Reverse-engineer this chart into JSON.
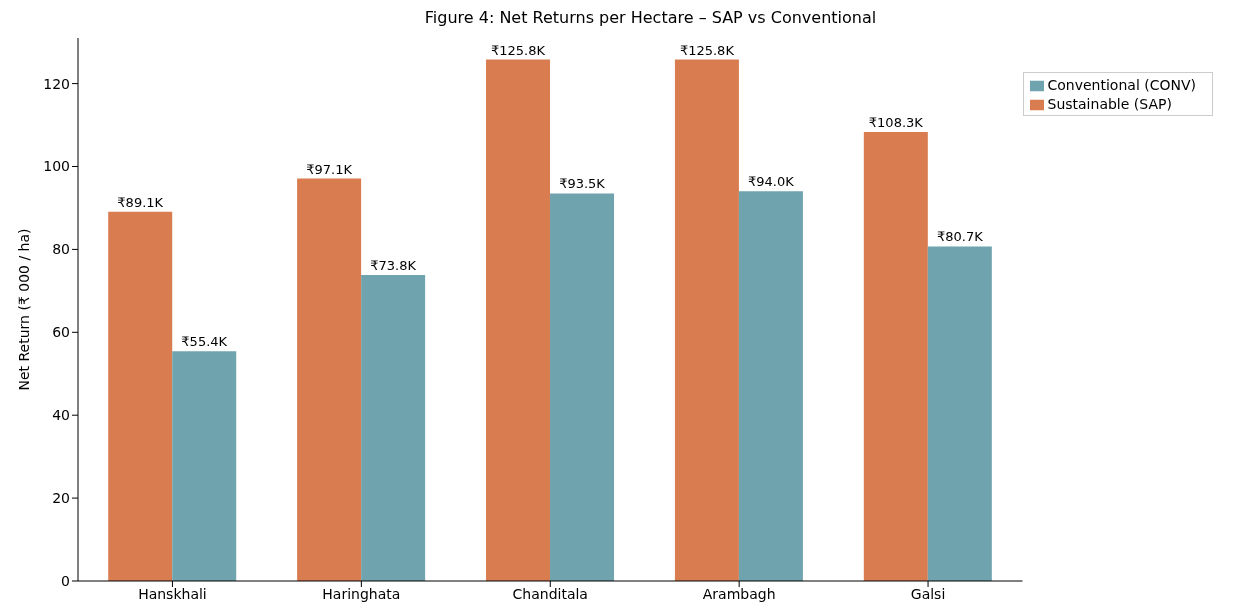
{
  "chart_data": {
    "type": "bar",
    "title": "Figure 4: Net Returns per Hectare – SAP vs Conventional",
    "ylabel": "Net Return (₹ 000 / ha)",
    "categories": [
      "Hanskhali",
      "Haringhata",
      "Chanditala",
      "Arambagh",
      "Galsi"
    ],
    "series": [
      {
        "name": "Sustainable (SAP)",
        "color": "#d97c50",
        "values": [
          89.1,
          97.1,
          125.8,
          125.8,
          108.3
        ],
        "value_labels": [
          "₹89.1K",
          "₹97.1K",
          "₹125.8K",
          "₹125.8K",
          "₹108.3K"
        ]
      },
      {
        "name": "Conventional (CONV)",
        "color": "#6fa3ad",
        "values": [
          55.4,
          73.8,
          93.5,
          94.0,
          80.7
        ],
        "value_labels": [
          "₹55.4K",
          "₹73.8K",
          "₹93.5K",
          "₹94.0K",
          "₹80.7K"
        ]
      }
    ],
    "ylim": [
      0,
      131
    ],
    "yticks": [
      0,
      20,
      40,
      60,
      80,
      100,
      120
    ],
    "legend": "top right"
  }
}
